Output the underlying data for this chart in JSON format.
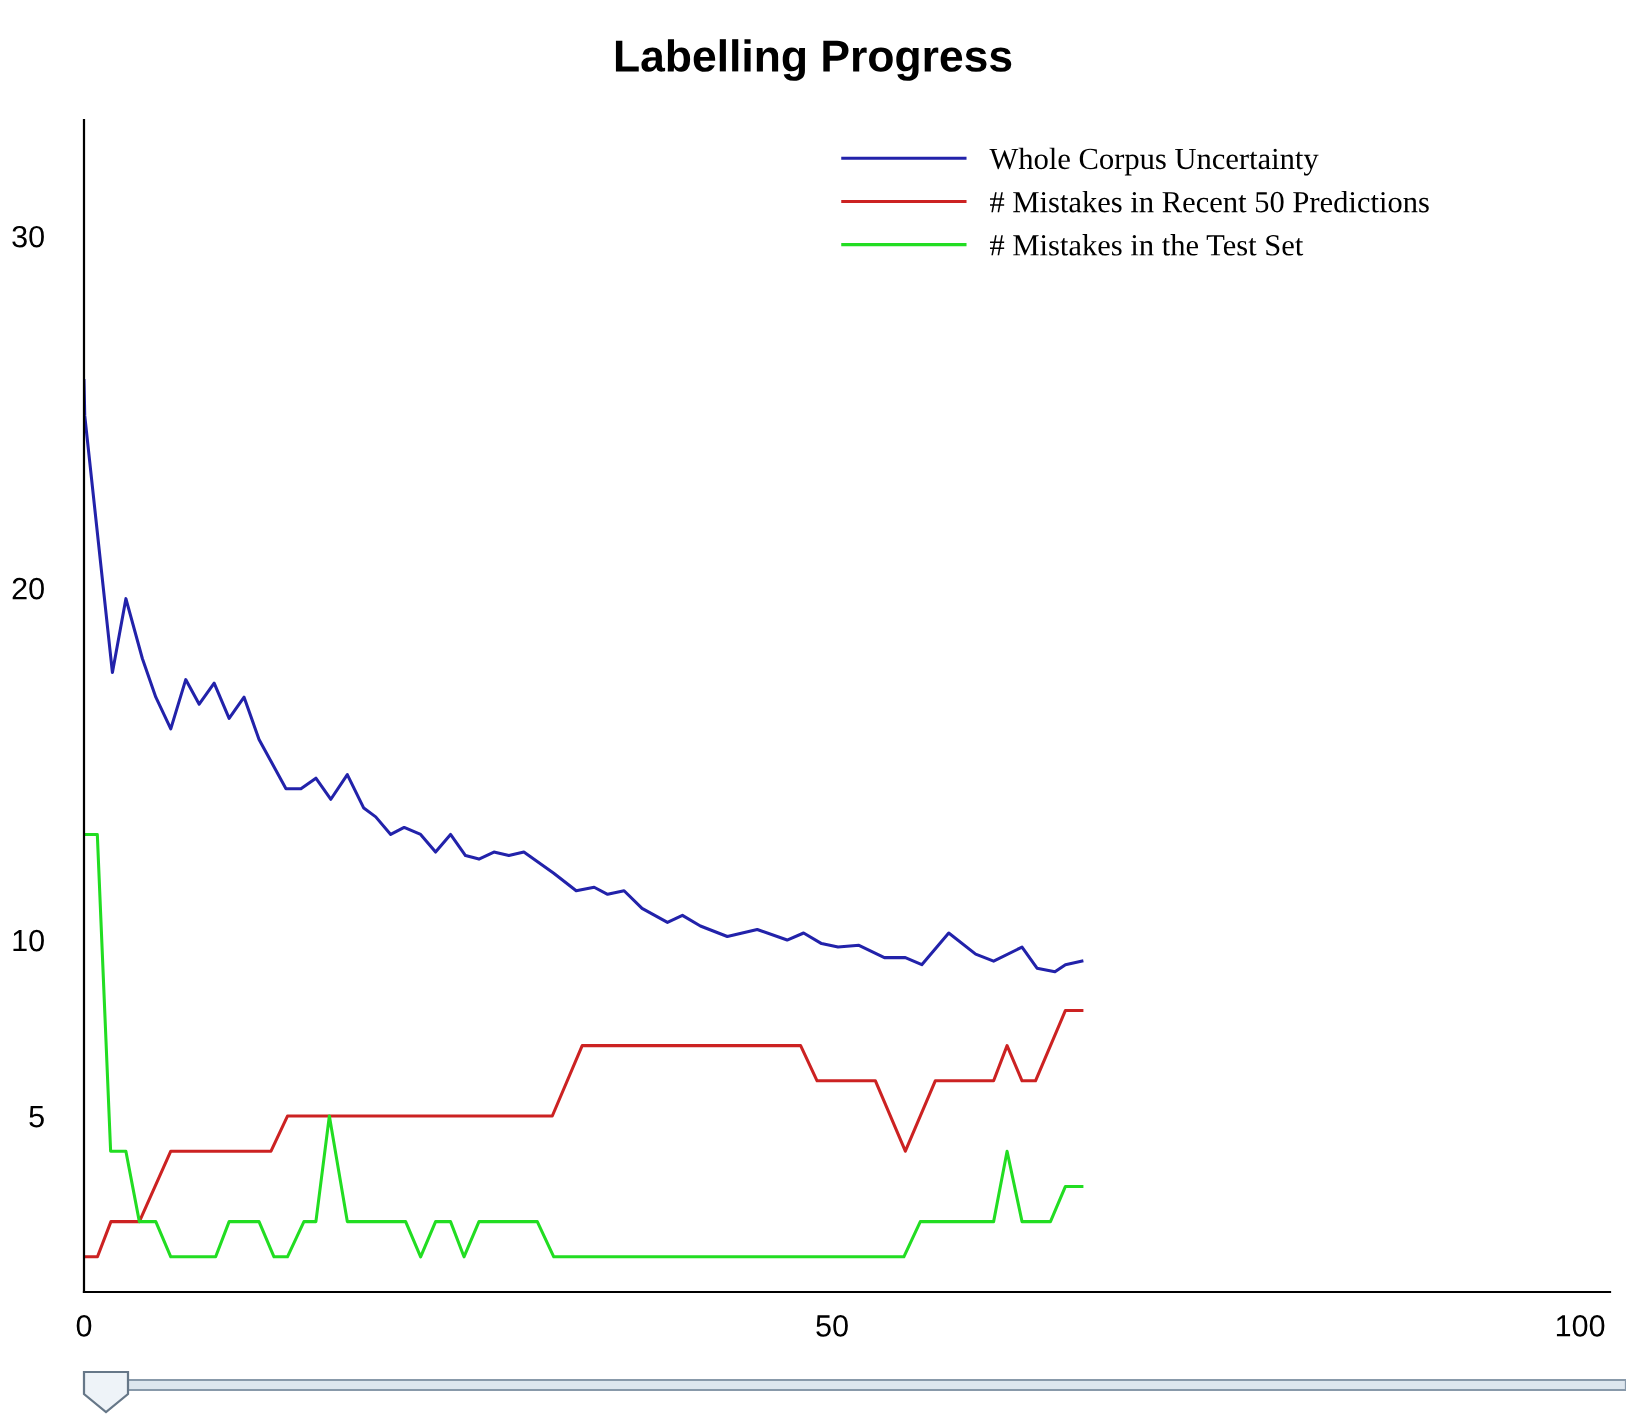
{
  "chart_data": {
    "type": "line",
    "title": "Labelling Progress",
    "xlim": [
      0,
      102
    ],
    "xticks": [
      0,
      50,
      100
    ],
    "ylim": [
      0,
      33.3
    ],
    "yticks": [
      5,
      10,
      20,
      30
    ],
    "grid": false,
    "legend": "top right",
    "marker": "none",
    "line_style": "solid",
    "series": [
      {
        "name": "Whole Corpus Uncertainty",
        "color": "#2222aa",
        "x": [
          0,
          0.05,
          1.9,
          2.8,
          3.9,
          4.8,
          5.8,
          6.8,
          7.7,
          8.7,
          9.7,
          10.7,
          11.7,
          13.5,
          14.5,
          15.5,
          16.5,
          17.6,
          18.7,
          19.5,
          20.5,
          21.4,
          22.5,
          23.5,
          24.5,
          25.5,
          26.4,
          27.4,
          28.4,
          29.4,
          31.4,
          32.9,
          34.1,
          35.0,
          36.1,
          37.3,
          39.0,
          40.0,
          41.2,
          43.0,
          45.0,
          47.0,
          48.1,
          49.3,
          50.4,
          51.8,
          53.5,
          54.9,
          56.0,
          57.8,
          59.6,
          60.8,
          62.7,
          63.7,
          64.9,
          65.6,
          66.7
        ],
        "values": [
          25.9,
          24.9,
          17.6,
          19.7,
          18.0,
          16.9,
          16.0,
          17.4,
          16.7,
          17.3,
          16.3,
          16.9,
          15.7,
          14.3,
          14.3,
          14.6,
          14.0,
          14.7,
          13.75,
          13.5,
          13.0,
          13.2,
          13.0,
          12.5,
          13.0,
          12.4,
          12.3,
          12.5,
          12.4,
          12.5,
          11.9,
          11.4,
          11.5,
          11.3,
          11.4,
          10.9,
          10.5,
          10.7,
          10.4,
          10.1,
          10.3,
          10.0,
          10.2,
          9.9,
          9.8,
          9.85,
          9.5,
          9.5,
          9.3,
          10.2,
          9.6,
          9.4,
          9.8,
          9.2,
          9.1,
          9.3,
          9.4
        ]
      },
      {
        "name": "# Mistakes in Recent 50 Predictions",
        "color": "#cc2222",
        "x": [
          0,
          0.9,
          1.8,
          3.7,
          5.8,
          12.5,
          13.6,
          31.3,
          33.3,
          47.9,
          49.0,
          52.9,
          54.9,
          56.9,
          60.8,
          61.7,
          62.7,
          63.6,
          65.6,
          66.7
        ],
        "values": [
          1,
          1,
          2,
          2,
          4,
          4,
          5,
          5,
          7,
          7,
          6,
          6,
          4,
          6,
          6,
          7,
          6,
          6,
          8,
          8
        ]
      },
      {
        "name": "# Mistakes in the Test Set",
        "color": "#22dd22",
        "x": [
          0,
          0.89,
          1.78,
          2.8,
          3.7,
          4.8,
          5.8,
          8.8,
          9.7,
          11.7,
          12.7,
          13.6,
          14.7,
          15.5,
          16.4,
          17.6,
          21.5,
          22.5,
          23.5,
          24.5,
          25.4,
          26.4,
          30.3,
          31.4,
          54.8,
          55.9,
          60.8,
          61.7,
          62.7,
          64.6,
          65.6,
          66.7
        ],
        "values": [
          13,
          13,
          4,
          4,
          2,
          2,
          1,
          1,
          2,
          2,
          1,
          1,
          2,
          2,
          5,
          2,
          2,
          1,
          2,
          2,
          1,
          2,
          2,
          1,
          1,
          2,
          2,
          4,
          2,
          2,
          3,
          3
        ]
      }
    ]
  }
}
